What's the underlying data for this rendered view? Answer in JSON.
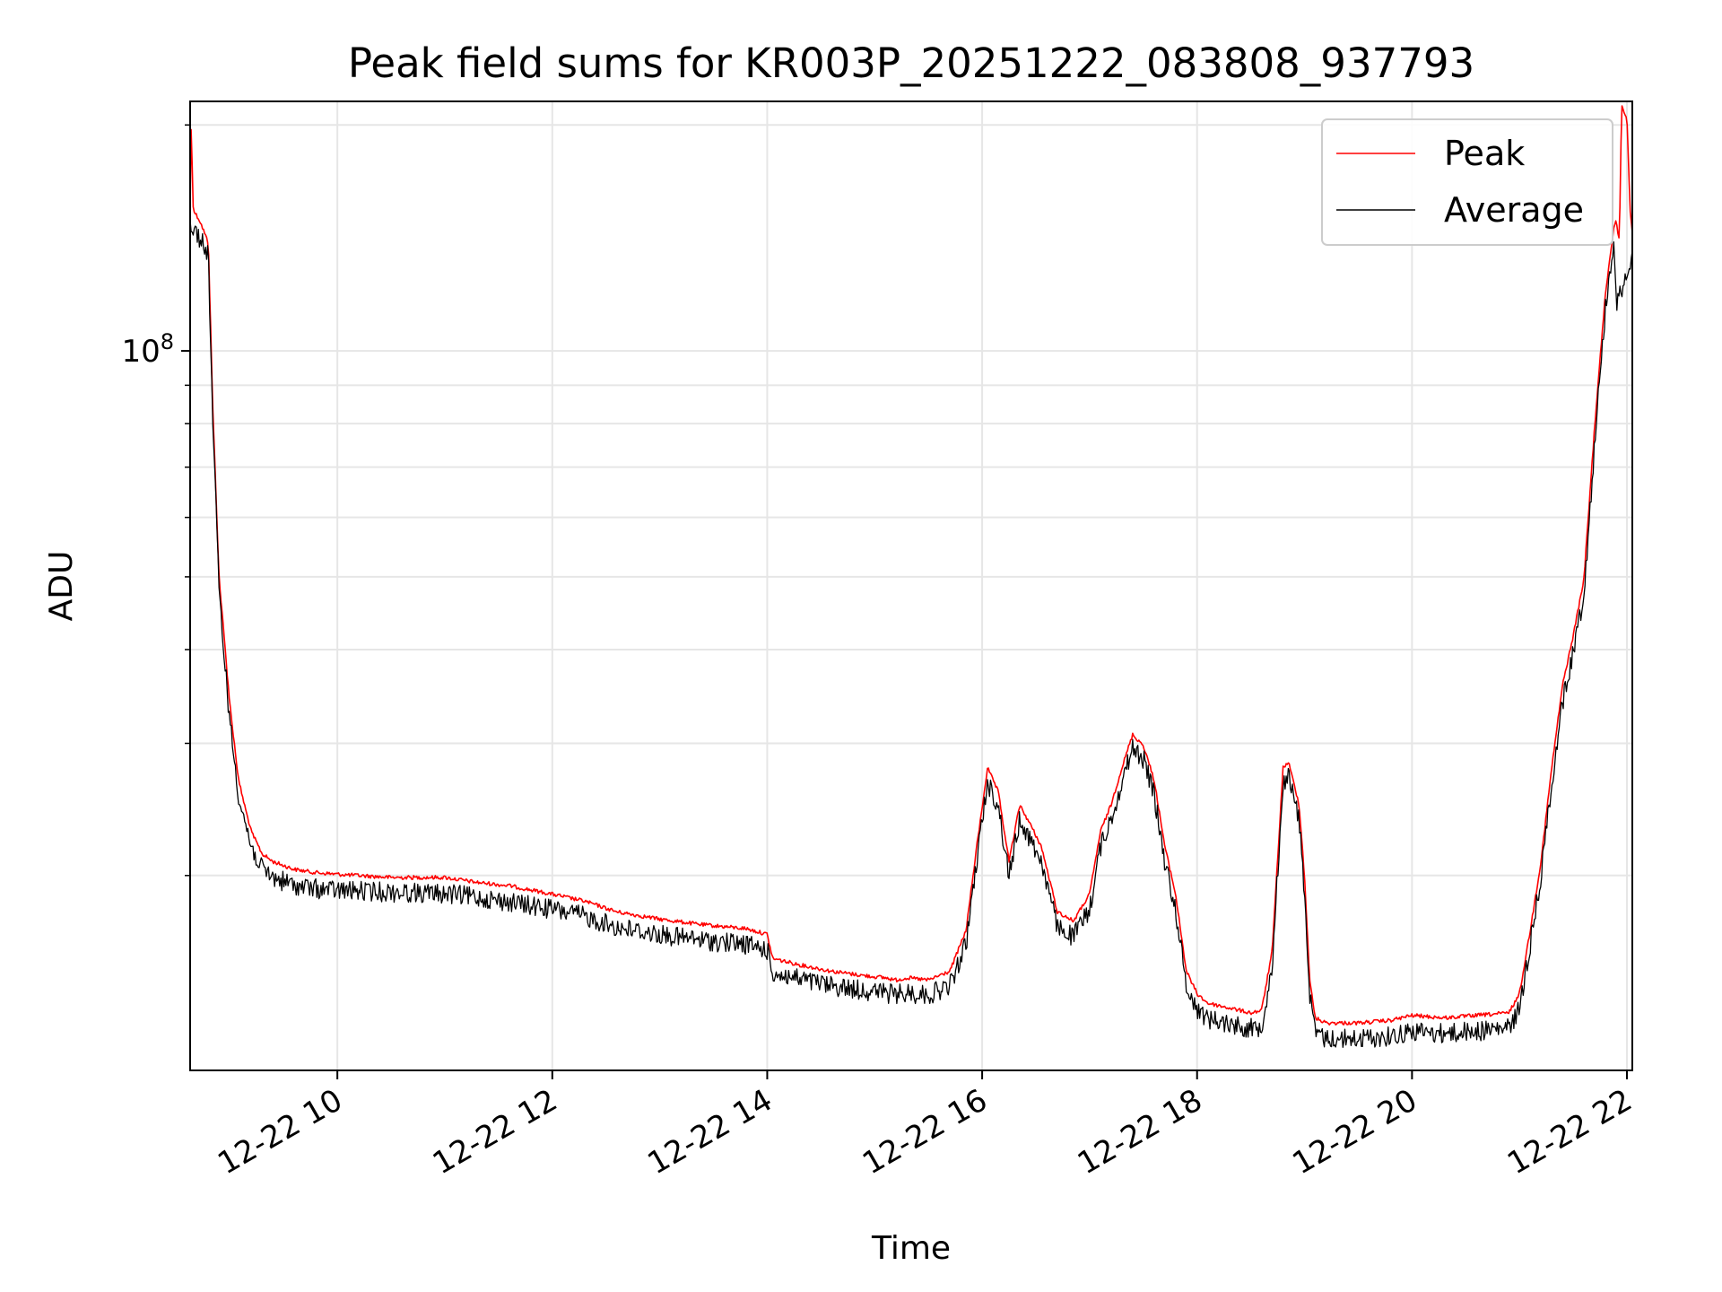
{
  "chart_data": {
    "type": "line",
    "title": "Peak field sums for KR003P_20251222_083808_937793",
    "xlabel": "Time",
    "ylabel": "ADU",
    "y_scale": "log",
    "grid": true,
    "legend_position": "top-right",
    "xlim_hours": [
      8.63,
      22.05
    ],
    "ylim": [
      11000000,
      215000000
    ],
    "x_ticks": [
      {
        "value": 10,
        "label": "12-22 10"
      },
      {
        "value": 12,
        "label": "12-22 12"
      },
      {
        "value": 14,
        "label": "12-22 14"
      },
      {
        "value": 16,
        "label": "12-22 16"
      },
      {
        "value": 18,
        "label": "12-22 18"
      },
      {
        "value": 20,
        "label": "12-22 20"
      },
      {
        "value": 22,
        "label": "12-22 22"
      }
    ],
    "y_ticks": [
      {
        "value": 100000000,
        "base": "10",
        "exponent": "8"
      }
    ],
    "y_minor_ticks": [
      20000000,
      30000000,
      40000000,
      50000000,
      60000000,
      70000000,
      80000000,
      90000000,
      200000000
    ],
    "series": [
      {
        "name": "Peak",
        "color": "#ff0000",
        "x": [
          8.63,
          8.64,
          8.66,
          8.72,
          8.8,
          8.84,
          8.9,
          9.0,
          9.08,
          9.15,
          9.2,
          9.3,
          9.4,
          9.6,
          9.8,
          10.0,
          10.5,
          11.0,
          11.3,
          11.6,
          12.0,
          12.3,
          12.6,
          13.0,
          13.4,
          13.6,
          13.8,
          14.0,
          14.05,
          14.3,
          14.6,
          14.9,
          15.1,
          15.2,
          15.3,
          15.5,
          15.7,
          15.85,
          15.95,
          16.05,
          16.15,
          16.25,
          16.35,
          16.45,
          16.55,
          16.7,
          16.85,
          17.0,
          17.1,
          17.2,
          17.3,
          17.4,
          17.5,
          17.6,
          17.7,
          17.8,
          17.9,
          18.0,
          18.1,
          18.3,
          18.5,
          18.6,
          18.7,
          18.8,
          18.85,
          18.95,
          19.0,
          19.05,
          19.1,
          19.2,
          19.5,
          19.8,
          20.0,
          20.3,
          20.6,
          20.9,
          21.0,
          21.1,
          21.2,
          21.3,
          21.4,
          21.5,
          21.6,
          21.7,
          21.8,
          21.88,
          21.9,
          21.93,
          21.95,
          21.97,
          22.0,
          22.03,
          22.05
        ],
        "y": [
          155000000,
          200000000,
          155000000,
          150000000,
          140000000,
          85000000,
          50000000,
          34000000,
          27000000,
          24500000,
          23000000,
          21500000,
          21000000,
          20500000,
          20300000,
          20200000,
          20000000,
          20000000,
          19700000,
          19500000,
          19000000,
          18600000,
          18000000,
          17600000,
          17300000,
          17200000,
          17100000,
          16800000,
          15600000,
          15300000,
          15000000,
          14800000,
          14700000,
          14600000,
          14700000,
          14600000,
          15000000,
          17000000,
          22000000,
          28000000,
          26000000,
          21000000,
          25000000,
          23500000,
          22000000,
          18000000,
          17500000,
          19000000,
          23000000,
          25000000,
          28000000,
          31000000,
          30000000,
          27000000,
          22000000,
          19000000,
          15000000,
          14000000,
          13600000,
          13400000,
          13200000,
          13300000,
          16000000,
          28000000,
          28500000,
          25000000,
          20000000,
          14500000,
          13000000,
          12800000,
          12800000,
          12900000,
          13100000,
          13000000,
          13100000,
          13200000,
          14000000,
          17000000,
          21000000,
          28000000,
          36000000,
          42000000,
          50000000,
          80000000,
          120000000,
          148000000,
          150000000,
          140000000,
          215000000,
          210000000,
          205000000,
          155000000,
          145000000
        ]
      },
      {
        "name": "Average",
        "color": "#000000",
        "x": [
          8.63,
          8.66,
          8.72,
          8.8,
          8.84,
          8.9,
          9.0,
          9.08,
          9.15,
          9.2,
          9.3,
          9.4,
          9.6,
          9.8,
          10.0,
          10.5,
          11.0,
          11.3,
          11.6,
          12.0,
          12.3,
          12.6,
          13.0,
          13.4,
          13.6,
          13.8,
          14.0,
          14.05,
          14.3,
          14.6,
          14.9,
          15.1,
          15.2,
          15.3,
          15.5,
          15.7,
          15.85,
          15.95,
          16.05,
          16.15,
          16.25,
          16.35,
          16.45,
          16.55,
          16.7,
          16.85,
          17.0,
          17.1,
          17.2,
          17.3,
          17.4,
          17.5,
          17.6,
          17.7,
          17.8,
          17.9,
          18.0,
          18.1,
          18.3,
          18.5,
          18.6,
          18.7,
          18.8,
          18.85,
          18.95,
          19.0,
          19.05,
          19.1,
          19.2,
          19.5,
          19.8,
          20.0,
          20.3,
          20.6,
          20.9,
          21.0,
          21.1,
          21.2,
          21.3,
          21.4,
          21.5,
          21.6,
          21.7,
          21.8,
          21.88,
          21.9,
          21.95,
          22.0,
          22.05
        ],
        "y": [
          152000000,
          150000000,
          146000000,
          138000000,
          84000000,
          49000000,
          33000000,
          26500000,
          24000000,
          22500000,
          21000000,
          20500000,
          20000000,
          19800000,
          19700000,
          19600000,
          19500000,
          19300000,
          19000000,
          18600000,
          18200000,
          17600000,
          17200000,
          16900000,
          16800000,
          16700000,
          16400000,
          15300000,
          15000000,
          14700000,
          14500000,
          14400000,
          14300000,
          14400000,
          14300000,
          14700000,
          16700000,
          21600000,
          27500000,
          25500000,
          20600000,
          24500000,
          23000000,
          21600000,
          17600000,
          17100000,
          18600000,
          22500000,
          24500000,
          27500000,
          30500000,
          29500000,
          26500000,
          21500000,
          18600000,
          14700000,
          13700000,
          13300000,
          13100000,
          12900000,
          13000000,
          15700000,
          27500000,
          28000000,
          24500000,
          19600000,
          14200000,
          12700000,
          12500000,
          12500000,
          12600000,
          12800000,
          12700000,
          12800000,
          12900000,
          13700000,
          16700000,
          20600000,
          27500000,
          35000000,
          41000000,
          49000000,
          78000000,
          118000000,
          145000000,
          118000000,
          125000000,
          130000000,
          140000000
        ]
      }
    ]
  }
}
